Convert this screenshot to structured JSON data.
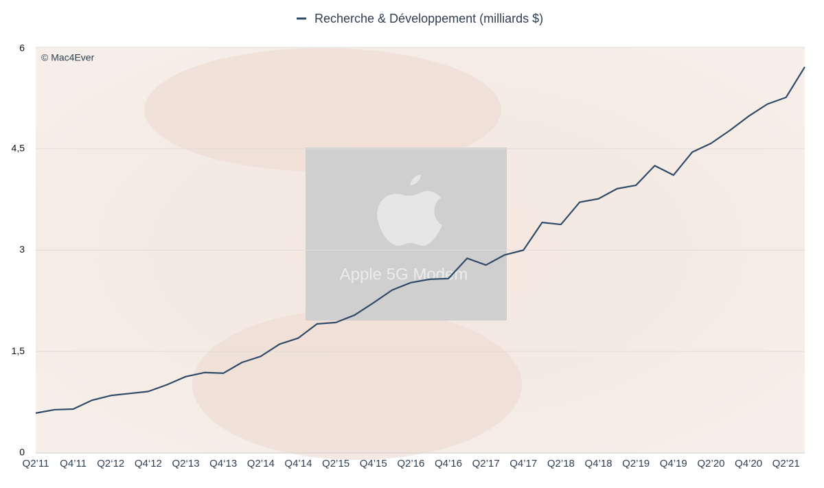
{
  "chart_data": {
    "type": "line",
    "annotations": [
      "© Mac4Ever",
      "Apple 5G Modem"
    ],
    "categories": [
      "Q2’11",
      null,
      "Q4’11",
      null,
      "Q2‘12",
      null,
      "Q4‘12",
      null,
      "Q2‘13",
      null,
      "Q4‘13",
      null,
      "Q2’14",
      null,
      "Q4’14",
      null,
      "Q2’15",
      null,
      "Q4’15",
      null,
      "Q2’16",
      null,
      "Q4’16",
      null,
      "Q2’17",
      null,
      "Q4’17",
      null,
      "Q2’18",
      null,
      "Q4’18",
      null,
      "Q2’19",
      null,
      "Q4’19",
      null,
      "Q2’20",
      null,
      "Q4’20",
      null,
      "Q2’21",
      null
    ],
    "series": [
      {
        "name": "Recherche & Développement (milliards $)",
        "color": "#2f4a66",
        "values": [
          0.59,
          0.64,
          0.65,
          0.78,
          0.85,
          0.88,
          0.91,
          1.01,
          1.13,
          1.19,
          1.18,
          1.34,
          1.43,
          1.61,
          1.7,
          1.91,
          1.93,
          2.04,
          2.22,
          2.41,
          2.52,
          2.57,
          2.58,
          2.88,
          2.78,
          2.93,
          3.0,
          3.41,
          3.38,
          3.71,
          3.76,
          3.91,
          3.96,
          4.25,
          4.11,
          4.45,
          4.58,
          4.77,
          4.98,
          5.16,
          5.26,
          5.71
        ]
      }
    ],
    "ylim": [
      0,
      6
    ],
    "yticks": [
      0,
      {
        "value": 1.5,
        "label": "1,5"
      },
      3,
      {
        "value": 4.5,
        "label": "4,5"
      },
      6
    ],
    "grid": true
  }
}
